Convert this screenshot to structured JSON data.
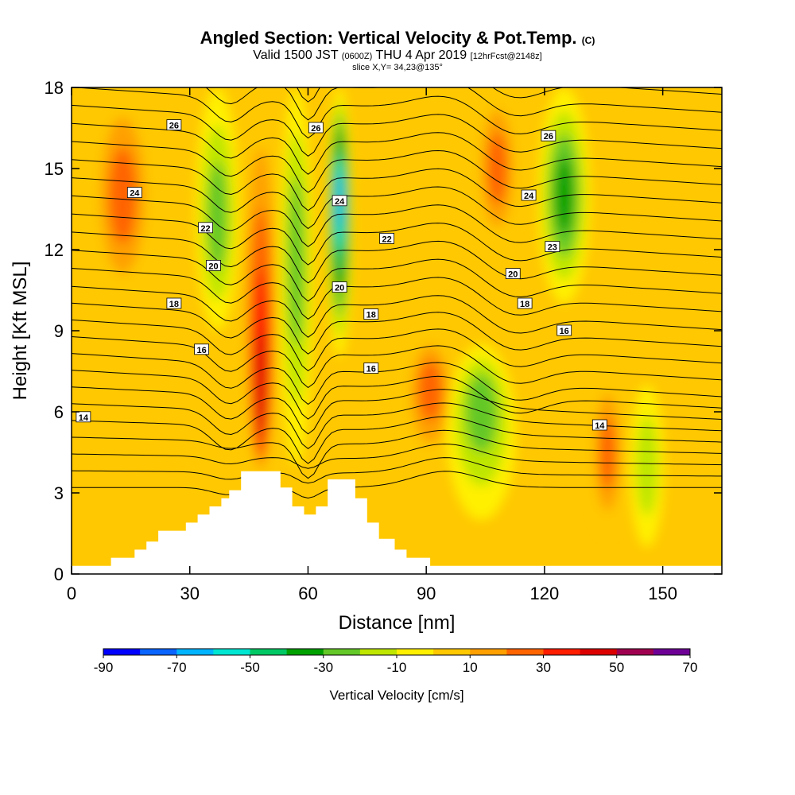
{
  "header": {
    "title_main": "Angled Section: Vertical Velocity & Pot.Temp.",
    "title_mark": "(C)",
    "valid_a": "Valid 1500 JST",
    "valid_zulu": "(0600Z)",
    "valid_b": "THU 4 Apr 2019",
    "valid_fcst": "[12hrFcst@2148z]",
    "slice": "slice X,Y= 34,23@135°"
  },
  "colors": {
    "background": "#ffffff",
    "terrain": "#ffffff",
    "contour_line": "#000000",
    "scale": [
      "#0000ff",
      "#0a64ff",
      "#00b4ff",
      "#00e6d2",
      "#00c864",
      "#00a000",
      "#64c828",
      "#bee600",
      "#fff000",
      "#ffc800",
      "#ffa000",
      "#ff6400",
      "#ff1e00",
      "#dc0000",
      "#a00050",
      "#6e0096"
    ]
  },
  "chart_data": {
    "type": "heatmap",
    "title": "Angled Section: Vertical Velocity & Pot.Temp.",
    "xlabel": "Distance [nm]",
    "ylabel": "Height [Kft MSL]",
    "xlim": [
      0,
      165
    ],
    "ylim": [
      0,
      18
    ],
    "x_ticks": [
      0,
      30,
      60,
      90,
      120,
      150
    ],
    "y_ticks": [
      0,
      3,
      6,
      9,
      12,
      15,
      18
    ],
    "colorbar": {
      "label": "Vertical Velocity [cm/s]",
      "levels": [
        -90,
        -80,
        -70,
        -60,
        -50,
        -40,
        -30,
        -20,
        -10,
        0,
        10,
        20,
        30,
        40,
        50,
        60,
        70
      ],
      "tick_labels": [
        "-90",
        "-70",
        "-50",
        "-30",
        "-10",
        "10",
        "30",
        "50",
        "70"
      ]
    },
    "vertical_velocity_features": [
      {
        "x": 48,
        "y": 5.5,
        "value": 45,
        "shape": "column",
        "width": 4,
        "ymin": 3.5,
        "ymax": 18
      },
      {
        "x": 68,
        "y": 14,
        "value": -65,
        "shape": "column",
        "width": 3,
        "ymin": 8,
        "ymax": 18
      },
      {
        "x": 37,
        "y": 13,
        "value": -30,
        "shape": "column",
        "width": 5,
        "ymin": 9,
        "ymax": 18
      },
      {
        "x": 57,
        "y": 12,
        "value": -25,
        "shape": "column",
        "width": 4,
        "ymin": 4,
        "ymax": 18
      },
      {
        "x": 13,
        "y": 14,
        "value": 25,
        "shape": "column",
        "width": 7,
        "ymin": 10,
        "ymax": 18
      },
      {
        "x": 91,
        "y": 7,
        "value": 25,
        "shape": "blob",
        "width": 6,
        "ymin": 4,
        "ymax": 9
      },
      {
        "x": 104,
        "y": 6.5,
        "value": -25,
        "shape": "blob",
        "width": 8,
        "ymin": 2,
        "ymax": 8.5
      },
      {
        "x": 108,
        "y": 15,
        "value": 25,
        "shape": "column",
        "width": 5,
        "ymin": 12,
        "ymax": 18
      },
      {
        "x": 125,
        "y": 14,
        "value": -35,
        "shape": "column",
        "width": 6,
        "ymin": 10,
        "ymax": 18
      },
      {
        "x": 136,
        "y": 4.5,
        "value": 25,
        "shape": "blob",
        "width": 4,
        "ymin": 1.5,
        "ymax": 7.5
      },
      {
        "x": 146,
        "y": 4,
        "value": -20,
        "shape": "blob",
        "width": 4,
        "ymin": 1,
        "ymax": 7
      }
    ],
    "potential_temperature_contours": [
      {
        "label": "14",
        "label_at": [
          3,
          5.8
        ]
      },
      {
        "label": "16",
        "label_at": [
          33,
          8.3
        ]
      },
      {
        "label": "18",
        "label_at": [
          26,
          10
        ]
      },
      {
        "label": "20",
        "label_at": [
          36,
          11.4
        ]
      },
      {
        "label": "22",
        "label_at": [
          34,
          12.8
        ]
      },
      {
        "label": "24",
        "label_at": [
          16,
          14.1
        ]
      },
      {
        "label": "26",
        "label_at": [
          26,
          16.6
        ]
      },
      {
        "label": "26",
        "label_at": [
          62,
          16.5
        ]
      },
      {
        "label": "24",
        "label_at": [
          68,
          13.8
        ]
      },
      {
        "label": "22",
        "label_at": [
          80,
          12.4
        ]
      },
      {
        "label": "20",
        "label_at": [
          68,
          10.6
        ]
      },
      {
        "label": "18",
        "label_at": [
          76,
          9.6
        ]
      },
      {
        "label": "16",
        "label_at": [
          76,
          7.6
        ]
      },
      {
        "label": "26",
        "label_at": [
          121,
          16.2
        ]
      },
      {
        "label": "24",
        "label_at": [
          116,
          14.0
        ]
      },
      {
        "label": "23",
        "label_at": [
          122,
          12.1
        ]
      },
      {
        "label": "20",
        "label_at": [
          112,
          11.1
        ]
      },
      {
        "label": "18",
        "label_at": [
          115,
          10.0
        ]
      },
      {
        "label": "16",
        "label_at": [
          125,
          9.0
        ]
      },
      {
        "label": "14",
        "label_at": [
          134,
          5.5
        ]
      }
    ],
    "terrain_profile": [
      [
        0,
        0.3
      ],
      [
        10,
        0.3
      ],
      [
        10,
        0.6
      ],
      [
        16,
        0.6
      ],
      [
        16,
        0.9
      ],
      [
        19,
        0.9
      ],
      [
        19,
        1.2
      ],
      [
        22,
        1.2
      ],
      [
        22,
        1.6
      ],
      [
        29,
        1.6
      ],
      [
        29,
        1.9
      ],
      [
        32,
        1.9
      ],
      [
        32,
        2.2
      ],
      [
        35,
        2.2
      ],
      [
        35,
        2.5
      ],
      [
        38,
        2.5
      ],
      [
        38,
        2.8
      ],
      [
        40,
        2.8
      ],
      [
        40,
        3.1
      ],
      [
        43,
        3.1
      ],
      [
        43,
        3.8
      ],
      [
        53,
        3.8
      ],
      [
        53,
        3.2
      ],
      [
        56,
        3.2
      ],
      [
        56,
        2.5
      ],
      [
        59,
        2.5
      ],
      [
        59,
        2.2
      ],
      [
        62,
        2.2
      ],
      [
        62,
        2.5
      ],
      [
        65,
        2.5
      ],
      [
        65,
        3.5
      ],
      [
        72,
        3.5
      ],
      [
        72,
        2.8
      ],
      [
        75,
        2.8
      ],
      [
        75,
        1.9
      ],
      [
        78,
        1.9
      ],
      [
        78,
        1.3
      ],
      [
        82,
        1.3
      ],
      [
        82,
        0.9
      ],
      [
        85,
        0.9
      ],
      [
        85,
        0.6
      ],
      [
        91,
        0.6
      ],
      [
        91,
        0.3
      ],
      [
        165,
        0.3
      ]
    ]
  }
}
